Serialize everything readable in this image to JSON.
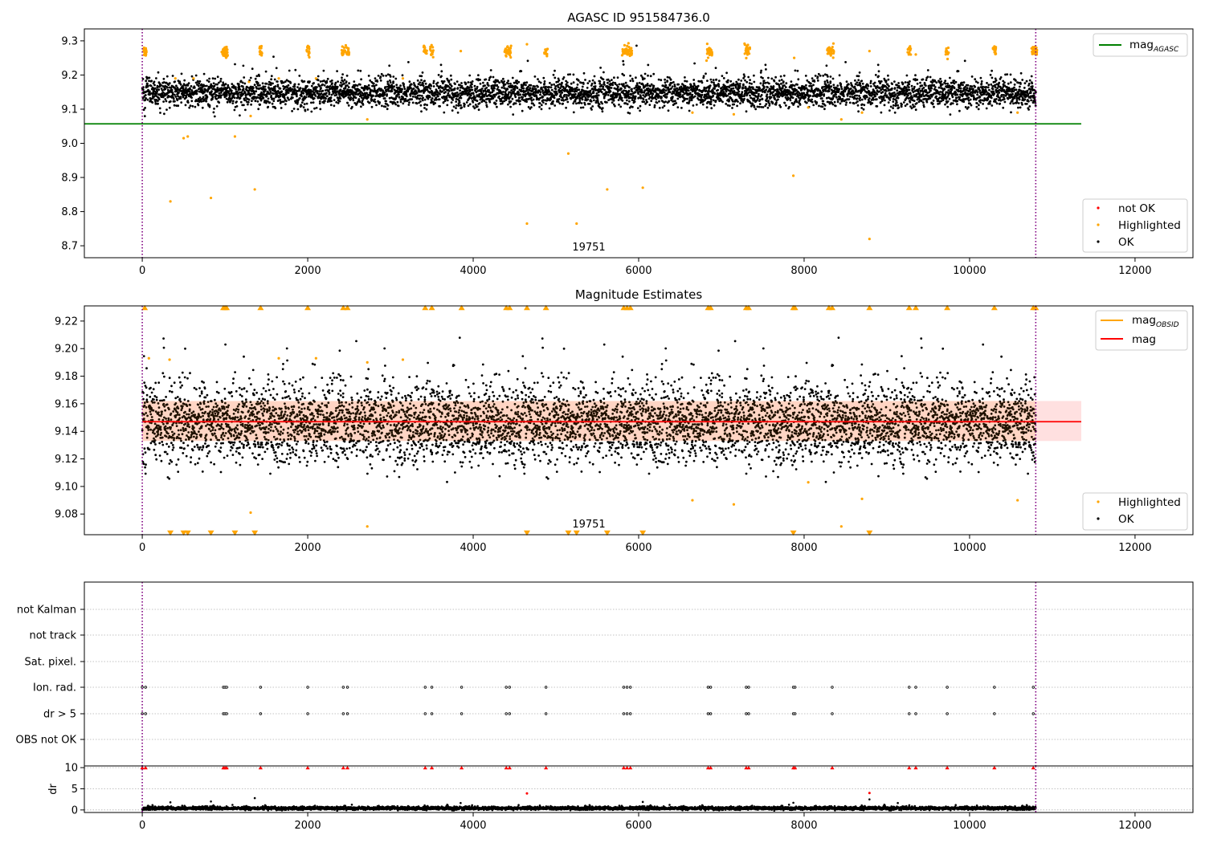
{
  "figure": {
    "colors": {
      "ok": "#000000",
      "highlighted": "#ffa500",
      "not_ok": "#ff0000",
      "mag_agasc": "#008000",
      "mag_obsid": "#ffa500",
      "mag": "#ff0000",
      "band": "#ff9999",
      "vline": "#800080"
    }
  },
  "chart_data": [
    {
      "type": "scatter",
      "title": "AGASC ID 951584736.0",
      "xlabel": "",
      "ylabel": "",
      "xlim": [
        -700,
        12700
      ],
      "ylim": [
        8.665,
        9.335
      ],
      "xticks": [
        0,
        2000,
        4000,
        6000,
        8000,
        10000,
        12000
      ],
      "yticks": [
        8.7,
        8.8,
        8.9,
        9.0,
        9.1,
        9.2,
        9.3
      ],
      "grid": false,
      "annotation": "19751",
      "annotation_x": 5400,
      "vlines": [
        0,
        10800
      ],
      "hlines": [
        {
          "name": "mag_AGASC",
          "y": 9.057,
          "x_range": [
            0,
            11350
          ]
        }
      ],
      "legend_upper": {
        "placement": "upper right",
        "entries": [
          {
            "label": "mag",
            "subscript": "AGASC",
            "marker": "line",
            "color": "#008000"
          }
        ]
      },
      "legend_lower": {
        "placement": "lower right",
        "entries": [
          {
            "label": "not OK",
            "marker": "dot",
            "color": "#ff0000"
          },
          {
            "label": "Highlighted",
            "marker": "dot",
            "color": "#ffa500"
          },
          {
            "label": "OK",
            "marker": "dot",
            "color": "#000000"
          }
        ]
      },
      "series": [
        {
          "name": "OK",
          "x_range": [
            0,
            10800
          ],
          "y_center": 9.147,
          "y_spread": 0.045
        },
        {
          "name": "Highlighted",
          "cluster_y": 9.27,
          "points": [
            [
              400,
              9.19
            ],
            [
              620,
              9.19
            ],
            [
              1290,
              9.18
            ],
            [
              1650,
              9.19
            ],
            [
              2100,
              9.19
            ],
            [
              3150,
              9.19
            ],
            [
              3850,
              9.27
            ],
            [
              4650,
              9.29
            ],
            [
              500,
              9.015
            ],
            [
              550,
              9.02
            ],
            [
              1120,
              9.02
            ],
            [
              1310,
              9.08
            ],
            [
              2720,
              9.07
            ],
            [
              6650,
              9.09
            ],
            [
              7150,
              9.085
            ],
            [
              8050,
              9.105
            ],
            [
              8450,
              9.07
            ],
            [
              8700,
              9.09
            ],
            [
              8790,
              9.27
            ],
            [
              10580,
              9.09
            ],
            [
              340,
              8.83
            ],
            [
              830,
              8.84
            ],
            [
              1360,
              8.865
            ],
            [
              4650,
              8.765
            ],
            [
              5150,
              8.97
            ],
            [
              5250,
              8.765
            ],
            [
              5620,
              8.865
            ],
            [
              6050,
              8.87
            ],
            [
              7870,
              8.905
            ],
            [
              8790,
              8.72
            ],
            [
              7880,
              9.25
            ],
            [
              9350,
              9.26
            ]
          ]
        }
      ]
    },
    {
      "type": "scatter",
      "title": "Magnitude Estimates",
      "xlabel": "",
      "ylabel": "",
      "xlim": [
        -700,
        12700
      ],
      "ylim": [
        9.065,
        9.231
      ],
      "xticks": [
        0,
        2000,
        4000,
        6000,
        8000,
        10000,
        12000
      ],
      "yticks": [
        9.08,
        9.1,
        9.12,
        9.14,
        9.16,
        9.18,
        9.2,
        9.22
      ],
      "grid": false,
      "annotation": "19751",
      "annotation_x": 5400,
      "vlines": [
        0,
        10800
      ],
      "hlines": [
        {
          "name": "mag",
          "y": 9.147,
          "x_range": [
            0,
            11350
          ]
        }
      ],
      "band": {
        "y_low": 9.133,
        "y_high": 9.162,
        "x_range": [
          0,
          11350
        ]
      },
      "legend_upper": {
        "placement": "upper right",
        "entries": [
          {
            "label": "mag",
            "subscript": "OBSID",
            "marker": "line",
            "color": "#ffa500"
          },
          {
            "label": "mag",
            "marker": "line",
            "color": "#ff0000"
          }
        ]
      },
      "legend_lower": {
        "placement": "lower right",
        "entries": [
          {
            "label": "Highlighted",
            "marker": "dot",
            "color": "#ffa500"
          },
          {
            "label": "OK",
            "marker": "dot",
            "color": "#000000"
          }
        ]
      },
      "series": [
        {
          "name": "OK",
          "x_range": [
            0,
            10800
          ],
          "y_center": 9.145,
          "y_spread": 0.03
        },
        {
          "name": "Highlighted",
          "points": [
            [
              80,
              9.193
            ],
            [
              330,
              9.192
            ],
            [
              1650,
              9.193
            ],
            [
              2100,
              9.193
            ],
            [
              2720,
              9.19
            ],
            [
              3150,
              9.192
            ],
            [
              1310,
              9.081
            ],
            [
              2720,
              9.071
            ],
            [
              6650,
              9.09
            ],
            [
              7150,
              9.087
            ],
            [
              8050,
              9.103
            ],
            [
              8450,
              9.071
            ],
            [
              8700,
              9.091
            ],
            [
              10580,
              9.09
            ]
          ]
        },
        {
          "name": "Highlighted above range",
          "marker": "triangle-up",
          "x": [
            30,
            980,
            1000,
            1020,
            1430,
            2000,
            2430,
            2480,
            3420,
            3500,
            3860,
            4400,
            4440,
            4650,
            4880,
            5820,
            5860,
            5900,
            6840,
            6870,
            7300,
            7330,
            7870,
            7890,
            8300,
            8340,
            8790,
            9270,
            9350,
            9730,
            10300,
            10770,
            10800
          ]
        },
        {
          "name": "Highlighted below range",
          "marker": "triangle-down",
          "x": [
            340,
            500,
            550,
            830,
            1120,
            1360,
            4650,
            5150,
            5250,
            5620,
            6050,
            7870,
            8790
          ]
        }
      ]
    },
    {
      "type": "scatter",
      "title": "",
      "xlabel": "",
      "ylabel": "",
      "xlim": [
        -700,
        12700
      ],
      "categories": [
        "not Kalman",
        "not track",
        "Sat. pixel.",
        "Ion. rad.",
        "dr > 5",
        "OBS not OK"
      ],
      "grid": true,
      "vlines": [
        0,
        10800
      ],
      "series": [
        {
          "name": "Ion. rad.",
          "x": [
            0,
            40,
            980,
            1000,
            1020,
            1430,
            2000,
            2430,
            2480,
            3420,
            3500,
            3860,
            4400,
            4440,
            4880,
            5820,
            5860,
            5900,
            6840,
            6870,
            7300,
            7330,
            7870,
            7890,
            8340,
            9270,
            9350,
            9730,
            10300,
            10770
          ]
        },
        {
          "name": "dr > 5",
          "x": [
            0,
            40,
            980,
            1000,
            1020,
            1430,
            2000,
            2430,
            2480,
            3420,
            3500,
            3860,
            4400,
            4440,
            4880,
            5820,
            5860,
            5900,
            6840,
            6870,
            7300,
            7330,
            7870,
            7890,
            8340,
            9270,
            9350,
            9730,
            10300,
            10770
          ]
        }
      ]
    },
    {
      "type": "scatter",
      "title": "",
      "xlabel": "",
      "ylabel": "dr",
      "xlim": [
        -700,
        12700
      ],
      "ylim": [
        -0.6,
        10.4
      ],
      "xticks": [
        0,
        2000,
        4000,
        6000,
        8000,
        10000,
        12000
      ],
      "yticks": [
        0,
        5,
        10
      ],
      "grid": true,
      "vlines": [
        0,
        10800
      ],
      "series": [
        {
          "name": "OK",
          "x_range": [
            0,
            10800
          ],
          "y_center": 0.4,
          "y_spread": 0.4
        },
        {
          "name": "not OK (clipped at 10)",
          "marker": "triangle-up",
          "x": [
            0,
            40,
            980,
            1000,
            1020,
            1430,
            2000,
            2430,
            2480,
            3420,
            3500,
            3860,
            4400,
            4440,
            4880,
            5820,
            5860,
            5900,
            6840,
            6870,
            7300,
            7330,
            7870,
            7890,
            8340,
            9270,
            9350,
            9730,
            10300,
            10770
          ]
        },
        {
          "name": "not OK",
          "points": [
            [
              4650,
              3.9
            ],
            [
              8790,
              4.0
            ]
          ]
        },
        {
          "name": "OK outliers",
          "points": [
            [
              340,
              1.8
            ],
            [
              830,
              2.0
            ],
            [
              1360,
              2.8
            ],
            [
              6050,
              1.9
            ],
            [
              8790,
              2.5
            ],
            [
              7870,
              1.7
            ]
          ]
        }
      ]
    }
  ]
}
